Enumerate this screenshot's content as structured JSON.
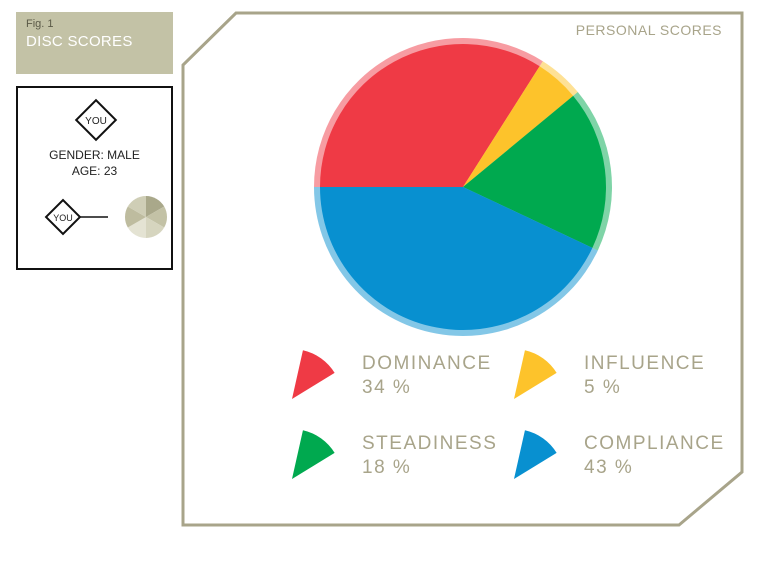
{
  "figure": {
    "number_label": "Fig. 1",
    "title": "DISC SCORES"
  },
  "profile": {
    "badge_text": "YOU",
    "gender_line": "GENDER: MALE",
    "age_line": "AGE: 23",
    "mini_badge_text": "YOU"
  },
  "panel": {
    "title": "PERSONAL SCORES"
  },
  "colors": {
    "dominance": "#ef3a45",
    "influence": "#fdc32b",
    "steadiness": "#00a94f",
    "compliance": "#0890d0",
    "frame": "#a8a48a",
    "label_box": "#c3c2a6"
  },
  "legend": [
    {
      "name": "DOMINANCE",
      "value": "34 %",
      "color": "#ef3a45"
    },
    {
      "name": "INFLUENCE",
      "value": "5 %",
      "color": "#fdc32b"
    },
    {
      "name": "STEADINESS",
      "value": "18 %",
      "color": "#00a94f"
    },
    {
      "name": "COMPLIANCE",
      "value": "43 %",
      "color": "#0890d0"
    }
  ],
  "chart_data": {
    "type": "pie",
    "categories": [
      "DOMINANCE",
      "INFLUENCE",
      "STEADINESS",
      "COMPLIANCE"
    ],
    "values": [
      34,
      5,
      18,
      43
    ],
    "colors": [
      "#ef3a45",
      "#fdc32b",
      "#00a94f",
      "#0890d0"
    ],
    "title": "PERSONAL SCORES",
    "legend": "bottom"
  }
}
